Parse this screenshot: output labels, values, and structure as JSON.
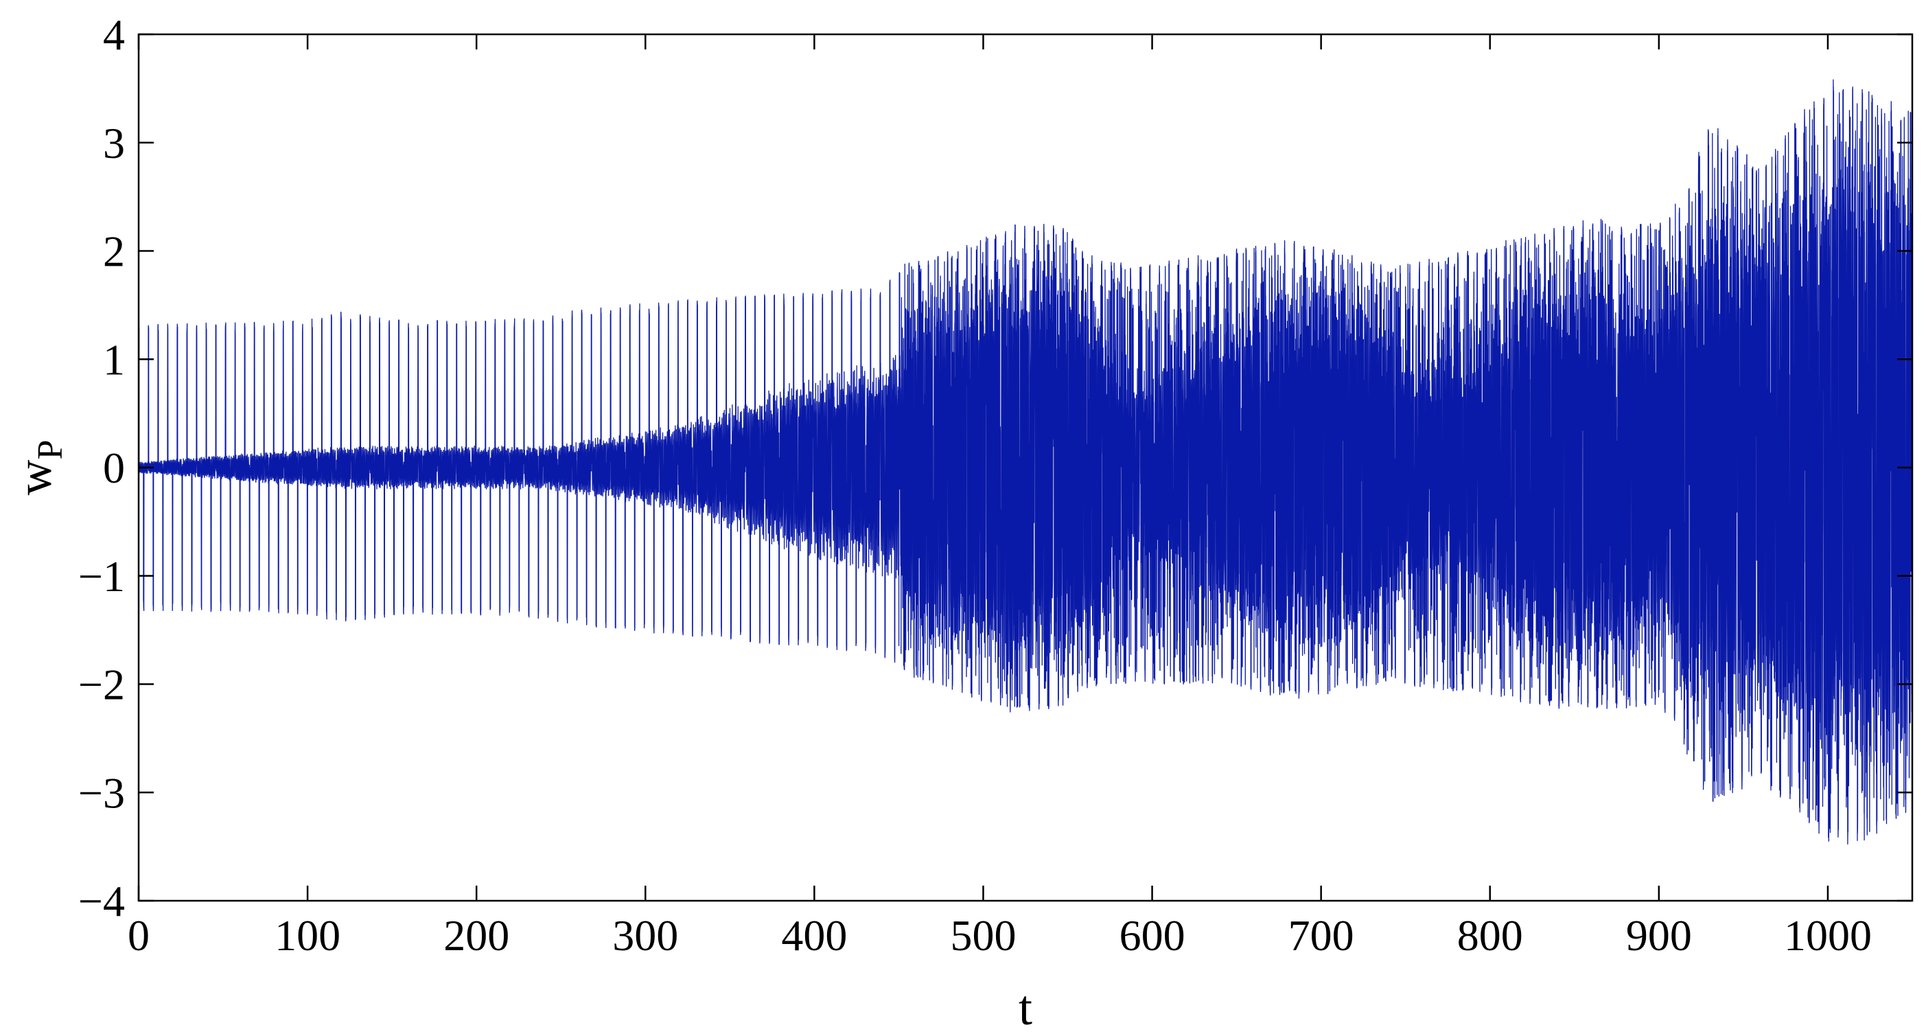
{
  "chart_data": {
    "type": "line",
    "title": "",
    "xlabel": "t",
    "ylabel": "w",
    "ylabel_subscript": "P",
    "xlim": [
      0,
      1050
    ],
    "ylim": [
      -4,
      4
    ],
    "xticks": [
      0,
      100,
      200,
      300,
      400,
      500,
      600,
      700,
      800,
      900,
      1000
    ],
    "yticks": [
      4,
      3,
      2,
      1,
      0,
      -1,
      -2,
      -3,
      -4
    ],
    "xtick_labels": [
      "0",
      "100",
      "200",
      "300",
      "400",
      "500",
      "600",
      "700",
      "800",
      "900",
      "1000"
    ],
    "ytick_labels": [
      "4",
      "3",
      "2",
      "1",
      "0",
      "−1",
      "−2",
      "−3",
      "−4"
    ],
    "grid": false,
    "legend": "none",
    "line_color": "#0a1aa8",
    "series": [
      {
        "envelope": {
          "t": [
            0,
            20,
            60,
            100,
            120,
            130,
            160,
            200,
            240,
            260,
            300,
            350,
            400,
            440,
            455,
            480,
            520,
            545,
            560,
            590,
            640,
            680,
            700,
            740,
            800,
            820,
            860,
            900,
            915,
            930,
            960,
            1000,
            1020,
            1050
          ],
          "upper": [
            1.32,
            1.33,
            1.34,
            1.36,
            1.44,
            1.42,
            1.36,
            1.36,
            1.4,
            1.46,
            1.52,
            1.58,
            1.62,
            1.68,
            1.9,
            2.0,
            2.25,
            2.25,
            2.0,
            1.85,
            2.0,
            2.1,
            2.05,
            1.85,
            2.05,
            2.15,
            2.3,
            2.25,
            2.55,
            3.2,
            2.8,
            3.6,
            3.5,
            3.3
          ],
          "lower": [
            -1.32,
            -1.33,
            -1.34,
            -1.36,
            -1.44,
            -1.42,
            -1.36,
            -1.36,
            -1.4,
            -1.46,
            -1.52,
            -1.6,
            -1.66,
            -1.75,
            -1.92,
            -2.05,
            -2.28,
            -2.25,
            -2.05,
            -2.0,
            -2.0,
            -2.15,
            -2.1,
            -2.0,
            -2.1,
            -2.2,
            -2.25,
            -2.2,
            -2.6,
            -3.1,
            -2.9,
            -3.45,
            -3.5,
            -3.15
          ]
        },
        "dense_core": {
          "t": [
            0,
            120,
            240,
            320,
            380,
            420,
            452,
            455,
            480,
            520,
            545,
            570,
            580,
            600,
            640,
            680,
            700,
            730,
            760,
            800,
            820,
            860,
            900,
            915,
            960,
            1000,
            1050
          ],
          "amplitude": [
            0.05,
            0.2,
            0.2,
            0.4,
            0.75,
            0.95,
            1.05,
            1.6,
            1.7,
            2.0,
            1.95,
            1.5,
            1.0,
            0.9,
            1.4,
            1.7,
            1.8,
            1.5,
            1.0,
            1.3,
            1.8,
            1.9,
            1.6,
            2.3,
            2.4,
            2.9,
            2.9
          ]
        }
      }
    ]
  }
}
